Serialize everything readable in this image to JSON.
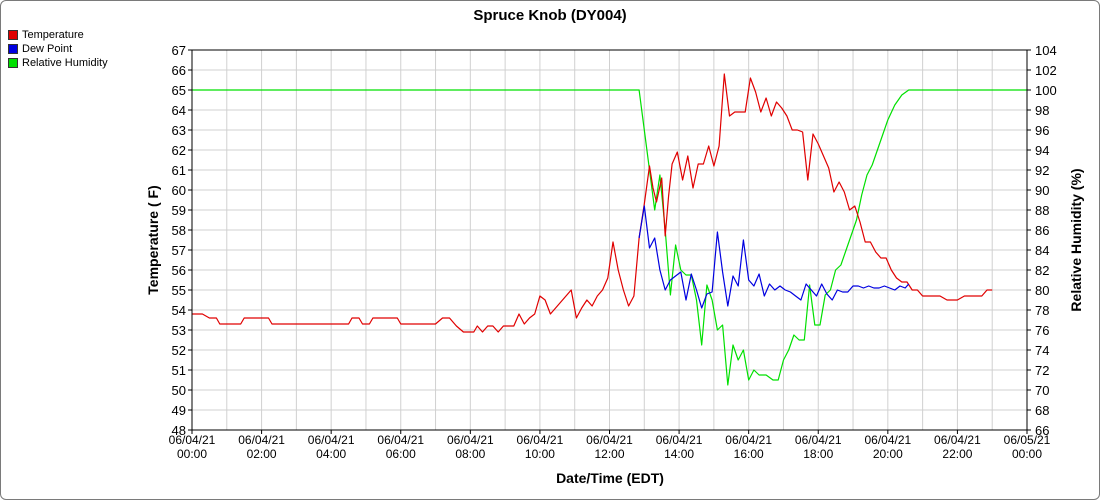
{
  "chart_data": {
    "type": "line",
    "title": "Spruce Knob (DY004)",
    "xlabel": "Date/Time (EDT)",
    "ylabel_left": "Temperature ( F)",
    "ylabel_right": "Relative Humidity (%)",
    "x_range_hours": [
      0,
      24
    ],
    "x_ticks": [
      {
        "hour": 0,
        "date": "06/04/21",
        "time": "00:00"
      },
      {
        "hour": 2,
        "date": "06/04/21",
        "time": "02:00"
      },
      {
        "hour": 4,
        "date": "06/04/21",
        "time": "04:00"
      },
      {
        "hour": 6,
        "date": "06/04/21",
        "time": "06:00"
      },
      {
        "hour": 8,
        "date": "06/04/21",
        "time": "08:00"
      },
      {
        "hour": 10,
        "date": "06/04/21",
        "time": "10:00"
      },
      {
        "hour": 12,
        "date": "06/04/21",
        "time": "12:00"
      },
      {
        "hour": 14,
        "date": "06/04/21",
        "time": "14:00"
      },
      {
        "hour": 16,
        "date": "06/04/21",
        "time": "16:00"
      },
      {
        "hour": 18,
        "date": "06/04/21",
        "time": "18:00"
      },
      {
        "hour": 20,
        "date": "06/04/21",
        "time": "20:00"
      },
      {
        "hour": 22,
        "date": "06/04/21",
        "time": "22:00"
      },
      {
        "hour": 24,
        "date": "06/05/21",
        "time": "00:00"
      }
    ],
    "y_left_range": [
      48,
      67
    ],
    "y_left_step": 1,
    "y_right_range": [
      66,
      104
    ],
    "y_right_step": 2,
    "grid": true,
    "legend_position": "top-left",
    "series": [
      {
        "name": "Temperature",
        "color": "#e00000",
        "axis": "left",
        "points": [
          [
            0,
            53.8
          ],
          [
            0.3,
            53.8
          ],
          [
            0.5,
            53.6
          ],
          [
            0.7,
            53.6
          ],
          [
            0.8,
            53.3
          ],
          [
            1.0,
            53.3
          ],
          [
            1.2,
            53.3
          ],
          [
            1.4,
            53.3
          ],
          [
            1.5,
            53.6
          ],
          [
            1.8,
            53.6
          ],
          [
            2.0,
            53.6
          ],
          [
            2.2,
            53.6
          ],
          [
            2.3,
            53.3
          ],
          [
            3.0,
            53.3
          ],
          [
            4.0,
            53.3
          ],
          [
            4.5,
            53.3
          ],
          [
            4.6,
            53.6
          ],
          [
            4.8,
            53.6
          ],
          [
            4.9,
            53.3
          ],
          [
            5.1,
            53.3
          ],
          [
            5.2,
            53.6
          ],
          [
            5.6,
            53.6
          ],
          [
            5.9,
            53.6
          ],
          [
            6.0,
            53.3
          ],
          [
            6.5,
            53.3
          ],
          [
            7.0,
            53.3
          ],
          [
            7.2,
            53.6
          ],
          [
            7.4,
            53.6
          ],
          [
            7.6,
            53.2
          ],
          [
            7.8,
            52.9
          ],
          [
            8.0,
            52.9
          ],
          [
            8.1,
            52.9
          ],
          [
            8.2,
            53.2
          ],
          [
            8.35,
            52.9
          ],
          [
            8.5,
            53.2
          ],
          [
            8.65,
            53.2
          ],
          [
            8.8,
            52.9
          ],
          [
            8.95,
            53.2
          ],
          [
            9.1,
            53.2
          ],
          [
            9.25,
            53.2
          ],
          [
            9.4,
            53.8
          ],
          [
            9.55,
            53.3
          ],
          [
            9.7,
            53.6
          ],
          [
            9.85,
            53.8
          ],
          [
            10.0,
            54.7
          ],
          [
            10.15,
            54.5
          ],
          [
            10.3,
            53.8
          ],
          [
            10.45,
            54.1
          ],
          [
            10.6,
            54.4
          ],
          [
            10.75,
            54.7
          ],
          [
            10.9,
            55.0
          ],
          [
            11.05,
            53.6
          ],
          [
            11.2,
            54.1
          ],
          [
            11.35,
            54.5
          ],
          [
            11.5,
            54.2
          ],
          [
            11.65,
            54.7
          ],
          [
            11.8,
            55.0
          ],
          [
            11.95,
            55.6
          ],
          [
            12.1,
            57.4
          ],
          [
            12.25,
            56.0
          ],
          [
            12.4,
            55.0
          ],
          [
            12.55,
            54.2
          ],
          [
            12.7,
            54.7
          ],
          [
            12.85,
            57.6
          ],
          [
            13.0,
            59.3
          ],
          [
            13.15,
            61.2
          ],
          [
            13.25,
            60.1
          ],
          [
            13.35,
            59.4
          ],
          [
            13.5,
            60.6
          ],
          [
            13.6,
            57.7
          ],
          [
            13.7,
            59.7
          ],
          [
            13.8,
            61.3
          ],
          [
            13.95,
            61.9
          ],
          [
            14.1,
            60.5
          ],
          [
            14.25,
            61.7
          ],
          [
            14.4,
            60.1
          ],
          [
            14.55,
            61.3
          ],
          [
            14.7,
            61.3
          ],
          [
            14.85,
            62.2
          ],
          [
            15.0,
            61.2
          ],
          [
            15.15,
            62.2
          ],
          [
            15.3,
            65.8
          ],
          [
            15.45,
            63.7
          ],
          [
            15.6,
            63.9
          ],
          [
            15.75,
            63.9
          ],
          [
            15.9,
            63.9
          ],
          [
            16.05,
            65.6
          ],
          [
            16.2,
            64.9
          ],
          [
            16.35,
            63.9
          ],
          [
            16.5,
            64.6
          ],
          [
            16.65,
            63.7
          ],
          [
            16.8,
            64.4
          ],
          [
            16.95,
            64.1
          ],
          [
            17.1,
            63.7
          ],
          [
            17.25,
            63.0
          ],
          [
            17.4,
            63.0
          ],
          [
            17.55,
            62.9
          ],
          [
            17.7,
            60.5
          ],
          [
            17.85,
            62.8
          ],
          [
            18.0,
            62.3
          ],
          [
            18.15,
            61.7
          ],
          [
            18.3,
            61.1
          ],
          [
            18.45,
            59.9
          ],
          [
            18.6,
            60.4
          ],
          [
            18.75,
            59.9
          ],
          [
            18.9,
            59.0
          ],
          [
            19.05,
            59.2
          ],
          [
            19.2,
            58.4
          ],
          [
            19.35,
            57.4
          ],
          [
            19.5,
            57.4
          ],
          [
            19.65,
            56.9
          ],
          [
            19.8,
            56.6
          ],
          [
            19.95,
            56.6
          ],
          [
            20.1,
            56.0
          ],
          [
            20.25,
            55.6
          ],
          [
            20.4,
            55.4
          ],
          [
            20.55,
            55.4
          ],
          [
            20.7,
            55.0
          ],
          [
            20.85,
            55.0
          ],
          [
            21.0,
            54.7
          ],
          [
            21.5,
            54.7
          ],
          [
            21.7,
            54.5
          ],
          [
            22.0,
            54.5
          ],
          [
            22.2,
            54.7
          ],
          [
            22.5,
            54.7
          ],
          [
            22.7,
            54.7
          ],
          [
            22.85,
            55.0
          ],
          [
            23.0,
            55.0
          ]
        ]
      },
      {
        "name": "Dew Point",
        "color": "#0000e0",
        "axis": "left",
        "points": [
          [
            12.85,
            57.6
          ],
          [
            13.0,
            59.2
          ],
          [
            13.15,
            57.1
          ],
          [
            13.3,
            57.6
          ],
          [
            13.45,
            56.0
          ],
          [
            13.6,
            55.0
          ],
          [
            13.75,
            55.5
          ],
          [
            13.9,
            55.7
          ],
          [
            14.05,
            55.9
          ],
          [
            14.2,
            54.5
          ],
          [
            14.35,
            55.8
          ],
          [
            14.5,
            55.0
          ],
          [
            14.65,
            54.1
          ],
          [
            14.8,
            54.8
          ],
          [
            14.95,
            54.9
          ],
          [
            15.1,
            57.9
          ],
          [
            15.25,
            55.9
          ],
          [
            15.4,
            54.2
          ],
          [
            15.55,
            55.7
          ],
          [
            15.7,
            55.2
          ],
          [
            15.85,
            57.5
          ],
          [
            16.0,
            55.5
          ],
          [
            16.15,
            55.2
          ],
          [
            16.3,
            55.8
          ],
          [
            16.45,
            54.7
          ],
          [
            16.6,
            55.3
          ],
          [
            16.75,
            55.0
          ],
          [
            16.9,
            55.2
          ],
          [
            17.05,
            55.0
          ],
          [
            17.2,
            54.9
          ],
          [
            17.35,
            54.7
          ],
          [
            17.5,
            54.5
          ],
          [
            17.65,
            55.3
          ],
          [
            17.8,
            55.0
          ],
          [
            17.95,
            54.7
          ],
          [
            18.1,
            55.3
          ],
          [
            18.25,
            54.8
          ],
          [
            18.4,
            54.5
          ],
          [
            18.55,
            55.0
          ],
          [
            18.7,
            54.9
          ],
          [
            18.85,
            54.9
          ],
          [
            19.0,
            55.2
          ],
          [
            19.15,
            55.2
          ],
          [
            19.3,
            55.1
          ],
          [
            19.45,
            55.2
          ],
          [
            19.6,
            55.1
          ],
          [
            19.75,
            55.1
          ],
          [
            19.9,
            55.2
          ],
          [
            20.05,
            55.1
          ],
          [
            20.2,
            55.0
          ],
          [
            20.35,
            55.2
          ],
          [
            20.5,
            55.1
          ],
          [
            20.6,
            55.3
          ]
        ]
      },
      {
        "name": "Relative Humidity",
        "color": "#00e000",
        "axis": "right",
        "points": [
          [
            0,
            100
          ],
          [
            4,
            100
          ],
          [
            8,
            100
          ],
          [
            12,
            100
          ],
          [
            12.85,
            100
          ],
          [
            13.0,
            96.0
          ],
          [
            13.15,
            92.0
          ],
          [
            13.3,
            88.0
          ],
          [
            13.45,
            91.5
          ],
          [
            13.6,
            86.0
          ],
          [
            13.75,
            79.5
          ],
          [
            13.9,
            84.5
          ],
          [
            14.05,
            82.0
          ],
          [
            14.2,
            81.5
          ],
          [
            14.35,
            81.5
          ],
          [
            14.5,
            79.0
          ],
          [
            14.65,
            74.5
          ],
          [
            14.8,
            80.5
          ],
          [
            14.95,
            79.0
          ],
          [
            15.1,
            76.0
          ],
          [
            15.25,
            76.5
          ],
          [
            15.4,
            70.5
          ],
          [
            15.55,
            74.5
          ],
          [
            15.7,
            73.0
          ],
          [
            15.85,
            74.0
          ],
          [
            16.0,
            71.0
          ],
          [
            16.15,
            72.0
          ],
          [
            16.3,
            71.5
          ],
          [
            16.5,
            71.5
          ],
          [
            16.7,
            71.0
          ],
          [
            16.85,
            71.0
          ],
          [
            17.0,
            73.0
          ],
          [
            17.15,
            74.0
          ],
          [
            17.3,
            75.5
          ],
          [
            17.45,
            75.0
          ],
          [
            17.6,
            75.0
          ],
          [
            17.75,
            80.5
          ],
          [
            17.9,
            76.5
          ],
          [
            18.05,
            76.5
          ],
          [
            18.2,
            79.5
          ],
          [
            18.35,
            80.0
          ],
          [
            18.5,
            82.0
          ],
          [
            18.65,
            82.5
          ],
          [
            18.8,
            84.0
          ],
          [
            18.95,
            85.5
          ],
          [
            19.1,
            87.0
          ],
          [
            19.25,
            89.5
          ],
          [
            19.4,
            91.5
          ],
          [
            19.55,
            92.5
          ],
          [
            19.7,
            94.0
          ],
          [
            19.85,
            95.5
          ],
          [
            20.0,
            97.0
          ],
          [
            20.2,
            98.5
          ],
          [
            20.4,
            99.5
          ],
          [
            20.6,
            100
          ],
          [
            22,
            100
          ],
          [
            24,
            100
          ]
        ]
      }
    ]
  }
}
